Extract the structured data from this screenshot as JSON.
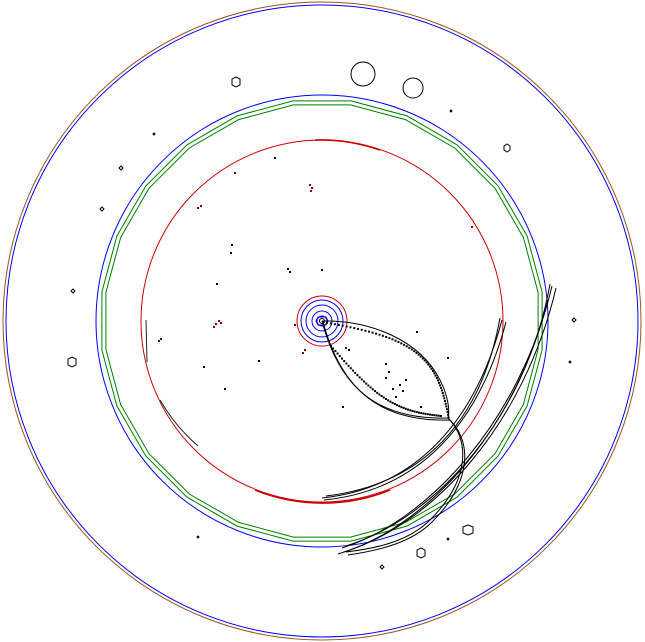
{
  "display": {
    "background": "#ffffff",
    "colors": {
      "outer_boundary": "#a0521d",
      "calorimeter_outline": "#0000ff",
      "muon_layer": "#008000",
      "tracker_outline": "#cc0000",
      "vertex_detector": "#0000ff",
      "tracks": "#000000",
      "hits": "#8b0000",
      "clusters": "#000000"
    }
  }
}
